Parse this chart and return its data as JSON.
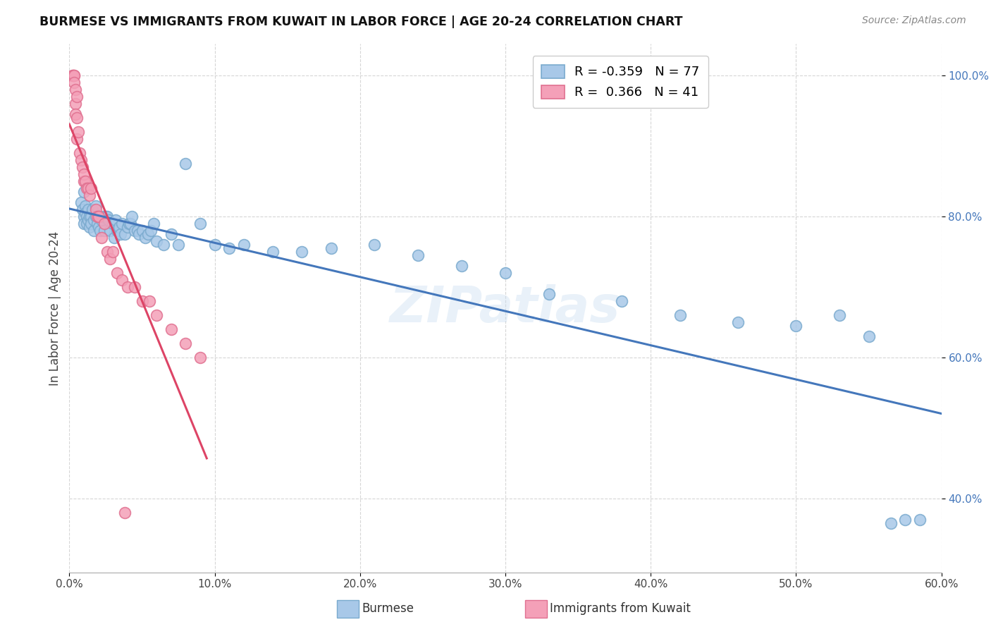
{
  "title": "BURMESE VS IMMIGRANTS FROM KUWAIT IN LABOR FORCE | AGE 20-24 CORRELATION CHART",
  "source": "Source: ZipAtlas.com",
  "ylabel": "In Labor Force | Age 20-24",
  "legend_blue_r": "-0.359",
  "legend_blue_n": "77",
  "legend_pink_r": "0.366",
  "legend_pink_n": "41",
  "legend_blue_label": "Burmese",
  "legend_pink_label": "Immigrants from Kuwait",
  "xmin": 0.0,
  "xmax": 0.6,
  "ymin": 0.295,
  "ymax": 1.045,
  "blue_color": "#a8c8e8",
  "pink_color": "#f4a0b8",
  "blue_edge_color": "#7aaace",
  "pink_edge_color": "#e07090",
  "blue_line_color": "#4477bb",
  "pink_line_color": "#dd4466",
  "watermark": "ZIPatlas",
  "blue_x": [
    0.008,
    0.009,
    0.01,
    0.01,
    0.01,
    0.011,
    0.011,
    0.012,
    0.012,
    0.013,
    0.013,
    0.014,
    0.014,
    0.015,
    0.015,
    0.016,
    0.017,
    0.017,
    0.018,
    0.018,
    0.019,
    0.02,
    0.02,
    0.021,
    0.022,
    0.023,
    0.024,
    0.025,
    0.026,
    0.027,
    0.028,
    0.03,
    0.031,
    0.032,
    0.033,
    0.034,
    0.035,
    0.036,
    0.038,
    0.04,
    0.041,
    0.042,
    0.043,
    0.045,
    0.047,
    0.048,
    0.05,
    0.052,
    0.054,
    0.056,
    0.058,
    0.06,
    0.065,
    0.07,
    0.075,
    0.08,
    0.09,
    0.1,
    0.11,
    0.12,
    0.14,
    0.16,
    0.18,
    0.21,
    0.24,
    0.27,
    0.3,
    0.33,
    0.38,
    0.42,
    0.46,
    0.5,
    0.53,
    0.55,
    0.565,
    0.575,
    0.585
  ],
  "blue_y": [
    0.82,
    0.81,
    0.835,
    0.8,
    0.79,
    0.815,
    0.805,
    0.8,
    0.79,
    0.81,
    0.795,
    0.8,
    0.785,
    0.8,
    0.79,
    0.81,
    0.795,
    0.78,
    0.8,
    0.815,
    0.79,
    0.8,
    0.785,
    0.78,
    0.795,
    0.8,
    0.78,
    0.8,
    0.8,
    0.795,
    0.78,
    0.79,
    0.77,
    0.795,
    0.78,
    0.785,
    0.775,
    0.79,
    0.775,
    0.785,
    0.79,
    0.79,
    0.8,
    0.78,
    0.78,
    0.775,
    0.78,
    0.77,
    0.775,
    0.78,
    0.79,
    0.765,
    0.76,
    0.775,
    0.76,
    0.875,
    0.79,
    0.76,
    0.755,
    0.76,
    0.75,
    0.75,
    0.755,
    0.76,
    0.745,
    0.73,
    0.72,
    0.69,
    0.68,
    0.66,
    0.65,
    0.645,
    0.66,
    0.63,
    0.365,
    0.37,
    0.37
  ],
  "pink_x": [
    0.002,
    0.002,
    0.003,
    0.003,
    0.003,
    0.004,
    0.004,
    0.004,
    0.005,
    0.005,
    0.005,
    0.006,
    0.007,
    0.008,
    0.009,
    0.01,
    0.01,
    0.011,
    0.012,
    0.013,
    0.014,
    0.015,
    0.018,
    0.019,
    0.02,
    0.022,
    0.024,
    0.026,
    0.028,
    0.03,
    0.033,
    0.036,
    0.04,
    0.045,
    0.05,
    0.055,
    0.06,
    0.07,
    0.08,
    0.09,
    0.038
  ],
  "pink_y": [
    1.0,
    1.0,
    1.0,
    1.0,
    0.99,
    0.98,
    0.96,
    0.945,
    0.97,
    0.94,
    0.91,
    0.92,
    0.89,
    0.88,
    0.87,
    0.85,
    0.86,
    0.85,
    0.84,
    0.84,
    0.83,
    0.84,
    0.81,
    0.8,
    0.8,
    0.77,
    0.79,
    0.75,
    0.74,
    0.75,
    0.72,
    0.71,
    0.7,
    0.7,
    0.68,
    0.68,
    0.66,
    0.64,
    0.62,
    0.6,
    0.38
  ],
  "xticks": [
    0.0,
    0.1,
    0.2,
    0.3,
    0.4,
    0.5,
    0.6
  ],
  "yticks": [
    0.4,
    0.6,
    0.8,
    1.0
  ]
}
